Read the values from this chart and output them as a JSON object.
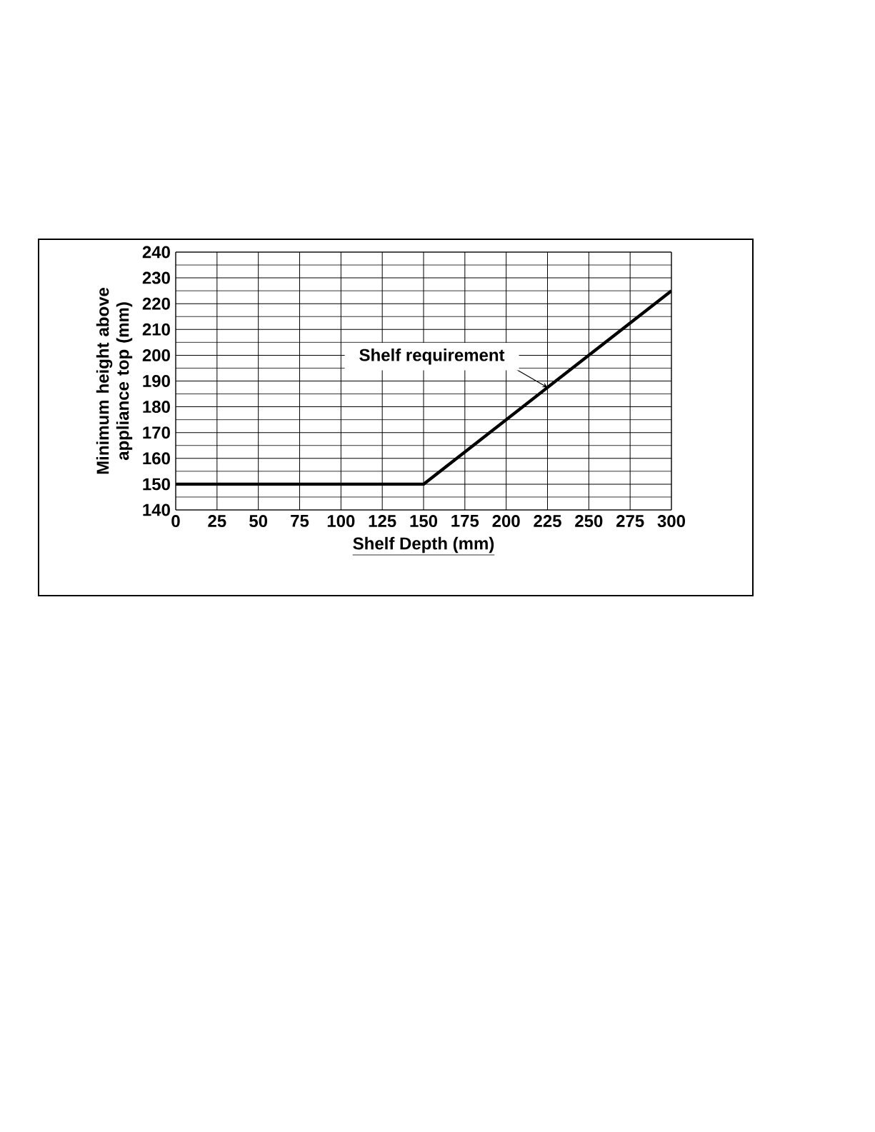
{
  "chart_data": {
    "type": "line",
    "xlabel": "Shelf Depth (mm)",
    "ylabel": "Minimum height above appliance top (mm)",
    "x": [
      0,
      150,
      300
    ],
    "series": [
      {
        "color": "#000000",
        "values": [
          150,
          150,
          225
        ]
      }
    ],
    "annotations": [
      {
        "text": "Shelf requirement",
        "x": 225,
        "y": 187.5
      }
    ],
    "xlim": [
      0,
      300
    ],
    "xticks": [
      0,
      25,
      50,
      75,
      100,
      125,
      150,
      175,
      200,
      225,
      250,
      275,
      300
    ],
    "ylim": [
      140,
      240
    ],
    "yticks": [
      140,
      150,
      160,
      170,
      180,
      190,
      200,
      210,
      220,
      230,
      240
    ],
    "grid": true,
    "marker": "none",
    "line_style": "solid"
  }
}
